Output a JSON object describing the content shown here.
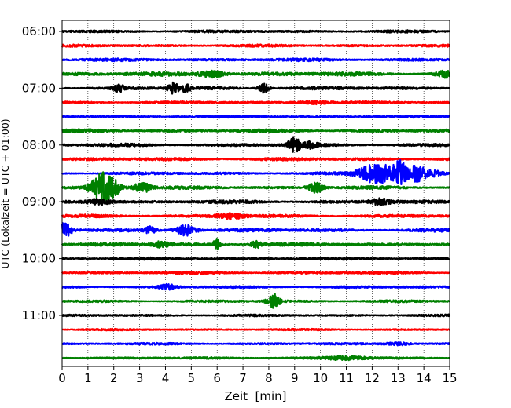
{
  "chart_data": {
    "type": "line",
    "subtype": "helicorder",
    "title": "",
    "xlabel": "Zeit  [min]",
    "ylabel": "UTC (Lokalzeit = UTC + 01:00)",
    "xlim": [
      0,
      15
    ],
    "x_ticks": [
      "0",
      "1",
      "2",
      "3",
      "4",
      "5",
      "6",
      "7",
      "8",
      "9",
      "10",
      "11",
      "12",
      "13",
      "14",
      "15"
    ],
    "y_tick_labels": [
      "06:00",
      "07:00",
      "08:00",
      "09:00",
      "10:00",
      "11:00"
    ],
    "y_tick_rows": [
      0,
      4,
      8,
      12,
      16,
      20
    ],
    "rows_per_hour": 4,
    "minutes_per_row": 15,
    "row_count": 24,
    "start_time_utc": "06:00",
    "color_cycle": [
      "#000000",
      "#ff0000",
      "#0000ff",
      "#008000"
    ],
    "grid": {
      "vertical": true,
      "style": "dotted"
    },
    "series": [
      {
        "start": "06:00",
        "noise": 0.1,
        "events": []
      },
      {
        "start": "06:15",
        "noise": 0.1,
        "events": []
      },
      {
        "start": "06:30",
        "noise": 0.12,
        "events": []
      },
      {
        "start": "06:45",
        "noise": 0.16,
        "events": [
          {
            "t": 5.8,
            "amp": 0.3,
            "dur": 0.5
          },
          {
            "t": 14.8,
            "amp": 0.25,
            "dur": 0.3
          }
        ]
      },
      {
        "start": "07:00",
        "noise": 0.12,
        "events": [
          {
            "t": 4.3,
            "amp": 0.45,
            "dur": 0.2
          },
          {
            "t": 4.8,
            "amp": 0.3,
            "dur": 0.2
          },
          {
            "t": 7.8,
            "amp": 0.45,
            "dur": 0.2
          },
          {
            "t": 2.2,
            "amp": 0.3,
            "dur": 0.2
          }
        ]
      },
      {
        "start": "07:15",
        "noise": 0.09,
        "events": [
          {
            "t": 9.8,
            "amp": 0.15,
            "dur": 0.6
          }
        ]
      },
      {
        "start": "07:30",
        "noise": 0.09,
        "events": []
      },
      {
        "start": "07:45",
        "noise": 0.13,
        "events": []
      },
      {
        "start": "08:00",
        "noise": 0.12,
        "events": [
          {
            "t": 9.0,
            "amp": 0.7,
            "dur": 0.25
          },
          {
            "t": 9.6,
            "amp": 0.25,
            "dur": 0.3
          }
        ]
      },
      {
        "start": "08:15",
        "noise": 0.12,
        "events": []
      },
      {
        "start": "08:30",
        "noise": 0.1,
        "events": [
          {
            "t": 12.2,
            "amp": 0.95,
            "dur": 0.7
          },
          {
            "t": 13.1,
            "amp": 1.1,
            "dur": 0.25
          },
          {
            "t": 13.7,
            "amp": 0.6,
            "dur": 0.3
          },
          {
            "t": 14.2,
            "amp": 0.3,
            "dur": 0.5
          }
        ]
      },
      {
        "start": "08:45",
        "noise": 0.12,
        "events": [
          {
            "t": 1.6,
            "amp": 1.4,
            "dur": 0.45
          },
          {
            "t": 3.1,
            "amp": 0.45,
            "dur": 0.35
          },
          {
            "t": 9.8,
            "amp": 0.45,
            "dur": 0.3
          },
          {
            "t": 2.0,
            "amp": 0.3,
            "dur": 0.3
          }
        ]
      },
      {
        "start": "09:00",
        "noise": 0.13,
        "events": [
          {
            "t": 1.4,
            "amp": 0.25,
            "dur": 0.5
          },
          {
            "t": 12.3,
            "amp": 0.25,
            "dur": 0.4
          }
        ]
      },
      {
        "start": "09:15",
        "noise": 0.12,
        "events": [
          {
            "t": 6.5,
            "amp": 0.25,
            "dur": 0.5
          }
        ]
      },
      {
        "start": "09:30",
        "noise": 0.13,
        "events": [
          {
            "t": 0.1,
            "amp": 0.6,
            "dur": 0.25
          },
          {
            "t": 4.8,
            "amp": 0.5,
            "dur": 0.4
          },
          {
            "t": 3.4,
            "amp": 0.25,
            "dur": 0.2
          }
        ]
      },
      {
        "start": "09:45",
        "noise": 0.13,
        "events": [
          {
            "t": 6.0,
            "amp": 0.5,
            "dur": 0.15
          },
          {
            "t": 7.5,
            "amp": 0.3,
            "dur": 0.2
          },
          {
            "t": 3.8,
            "amp": 0.25,
            "dur": 0.3
          }
        ]
      },
      {
        "start": "10:00",
        "noise": 0.1,
        "events": []
      },
      {
        "start": "10:15",
        "noise": 0.1,
        "events": []
      },
      {
        "start": "10:30",
        "noise": 0.09,
        "events": [
          {
            "t": 4.1,
            "amp": 0.25,
            "dur": 0.3
          }
        ]
      },
      {
        "start": "10:45",
        "noise": 0.09,
        "events": [
          {
            "t": 8.2,
            "amp": 0.6,
            "dur": 0.25
          }
        ]
      },
      {
        "start": "11:00",
        "noise": 0.08,
        "events": []
      },
      {
        "start": "11:15",
        "noise": 0.07,
        "events": []
      },
      {
        "start": "11:30",
        "noise": 0.08,
        "events": [
          {
            "t": 13.0,
            "amp": 0.15,
            "dur": 0.5
          }
        ]
      },
      {
        "start": "11:45",
        "noise": 0.08,
        "events": [
          {
            "t": 11.0,
            "amp": 0.15,
            "dur": 0.8
          }
        ]
      }
    ]
  }
}
